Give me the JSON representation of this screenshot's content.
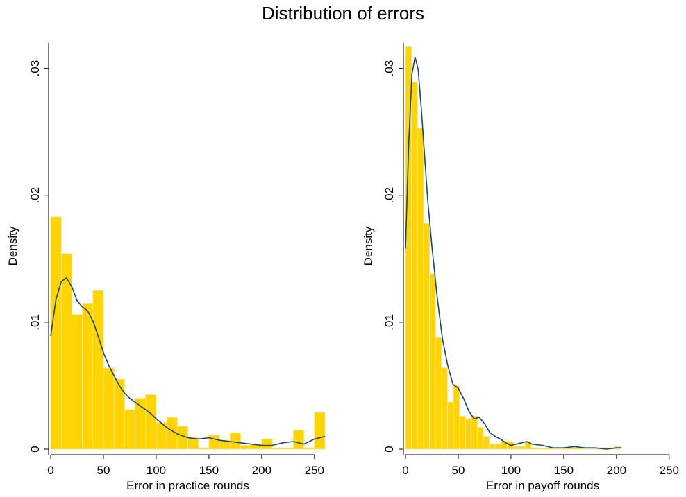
{
  "figure_title": "Distribution of errors",
  "chart_data": [
    {
      "type": "bar",
      "subtype": "histogram-with-kde",
      "xlabel": "Error in practice rounds",
      "ylabel": "Density",
      "xlim": [
        -2,
        260
      ],
      "ylim": [
        0,
        0.032
      ],
      "xticks": [
        "0",
        "50",
        "100",
        "150",
        "200",
        "250"
      ],
      "yticks": [
        ".03",
        ".02",
        ".01",
        "0"
      ],
      "xtick_values": [
        0,
        50,
        100,
        150,
        200,
        250
      ],
      "ytick_values": [
        0.03,
        0.02,
        0.01,
        0
      ],
      "bin_start": 0,
      "bin_width": 10,
      "series": [
        {
          "values": [
            0.0183,
            0.0154,
            0.0106,
            0.0115,
            0.0125,
            0.0064,
            0.0055,
            0.0031,
            0.004,
            0.0043,
            0.0021,
            0.0025,
            0.0018,
            0.0009,
            0.0001,
            0.0011,
            0.0007,
            0.0013,
            0.0003,
            0.0004,
            0.0008,
            0.0001,
            0.0001,
            0.0015,
            0.0001,
            0.0029
          ]
        }
      ],
      "density_curve": {
        "x": [
          0,
          5,
          10,
          15,
          20,
          25,
          30,
          35,
          40,
          45,
          50,
          55,
          60,
          65,
          70,
          75,
          80,
          85,
          90,
          95,
          100,
          110,
          120,
          130,
          140,
          150,
          160,
          170,
          180,
          190,
          200,
          210,
          220,
          230,
          240,
          250,
          260
        ],
        "y": [
          0.0089,
          0.0118,
          0.0132,
          0.0135,
          0.0128,
          0.0117,
          0.0112,
          0.0109,
          0.0101,
          0.0089,
          0.0076,
          0.0066,
          0.0058,
          0.005,
          0.0044,
          0.004,
          0.0037,
          0.0034,
          0.0031,
          0.0028,
          0.0024,
          0.0017,
          0.0012,
          0.0009,
          0.0008,
          0.0009,
          0.0007,
          0.0006,
          0.0005,
          0.0004,
          0.0003,
          0.0003,
          0.0005,
          0.0006,
          0.0004,
          0.0008,
          0.001
        ]
      },
      "colors": {
        "bar_fill": "#FFD400",
        "bar_edge": "#F0E68C",
        "curve": "#1A476F"
      },
      "grid": false
    },
    {
      "type": "bar",
      "subtype": "histogram-with-kde",
      "xlabel": "Error in payoff rounds",
      "ylabel": "Density",
      "xlim": [
        -2,
        260
      ],
      "ylim": [
        0,
        0.032
      ],
      "xticks": [
        "0",
        "50",
        "100",
        "150",
        "200",
        "250"
      ],
      "yticks": [
        ".03",
        ".02",
        ".01",
        "0"
      ],
      "xtick_values": [
        0,
        50,
        100,
        150,
        200,
        250
      ],
      "ytick_values": [
        0.03,
        0.02,
        0.01,
        0
      ],
      "bin_start": 0,
      "bin_width": 5.67,
      "series": [
        {
          "values": [
            0.0317,
            0.0289,
            0.0253,
            0.0178,
            0.0138,
            0.0088,
            0.0064,
            0.0037,
            0.005,
            0.0026,
            0.0024,
            0.0026,
            0.0017,
            0.001,
            0.0004,
            0.0004,
            0.0006,
            0.0006,
            0.0002,
            0.0002,
            0.0006,
            0.0001,
            0.0001,
            0.0001,
            0.0001,
            0.0001,
            0.0001,
            0.0001,
            0.0001,
            0.0001,
            0.0001,
            0.0001,
            0.0001,
            0.0001,
            0.0001,
            0.0002
          ]
        }
      ],
      "density_curve": {
        "x": [
          0,
          3,
          6,
          9,
          12,
          15,
          18,
          21,
          25,
          30,
          35,
          40,
          45,
          50,
          55,
          60,
          65,
          70,
          75,
          80,
          85,
          90,
          95,
          100,
          110,
          115,
          120,
          130,
          140,
          150,
          160,
          170,
          180,
          190,
          200,
          205
        ],
        "y": [
          0.0158,
          0.024,
          0.0295,
          0.0309,
          0.0299,
          0.0268,
          0.0232,
          0.0197,
          0.016,
          0.012,
          0.0087,
          0.0066,
          0.0051,
          0.0048,
          0.004,
          0.003,
          0.0024,
          0.0025,
          0.002,
          0.0013,
          0.001,
          0.0008,
          0.0005,
          0.0003,
          0.0005,
          0.0006,
          0.0004,
          0.0003,
          0.0001,
          0.0001,
          0.0002,
          0.0001,
          0.0001,
          0.0,
          0.0001,
          0.0001
        ]
      },
      "colors": {
        "bar_fill": "#FFD400",
        "bar_edge": "#F0E68C",
        "curve": "#1A476F"
      },
      "grid": false
    }
  ]
}
